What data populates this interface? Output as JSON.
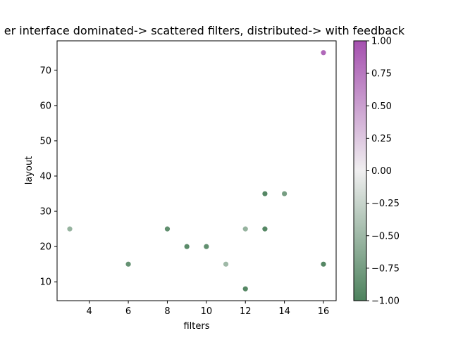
{
  "chart_data": {
    "type": "scatter",
    "title": "er interface dominated-> scattered filters, distributed-> with feedback",
    "xlabel": "filters",
    "ylabel": "layout",
    "xlim": [
      2.35,
      16.65
    ],
    "ylim": [
      4.65,
      78.35
    ],
    "x_ticks": [
      4,
      6,
      8,
      10,
      12,
      14,
      16
    ],
    "y_ticks": [
      10,
      20,
      30,
      40,
      50,
      60,
      70
    ],
    "grid": false,
    "points": [
      {
        "x": 3,
        "y": 25,
        "c": -0.55
      },
      {
        "x": 6,
        "y": 15,
        "c": -0.85
      },
      {
        "x": 8,
        "y": 25,
        "c": -0.88
      },
      {
        "x": 9,
        "y": 20,
        "c": -0.92
      },
      {
        "x": 10,
        "y": 20,
        "c": -0.88
      },
      {
        "x": 11,
        "y": 15,
        "c": -0.5
      },
      {
        "x": 12,
        "y": 25,
        "c": -0.55
      },
      {
        "x": 12,
        "y": 8,
        "c": -0.95
      },
      {
        "x": 13,
        "y": 35,
        "c": -0.95
      },
      {
        "x": 13,
        "y": 25,
        "c": -0.95
      },
      {
        "x": 14,
        "y": 35,
        "c": -0.75
      },
      {
        "x": 16,
        "y": 15,
        "c": -0.95
      },
      {
        "x": 16,
        "y": 75,
        "c": 0.85
      }
    ],
    "colorbar": {
      "min": -1.0,
      "max": 1.0,
      "ticks": [
        "1.00",
        "0.75",
        "0.50",
        "0.25",
        "0.00",
        "−0.25",
        "−0.50",
        "−0.75",
        "−1.00"
      ],
      "colormap": "PRGn-reversed",
      "color_low": "#4d825d",
      "color_mid": "#f0eff0",
      "color_high": "#a550af"
    }
  }
}
